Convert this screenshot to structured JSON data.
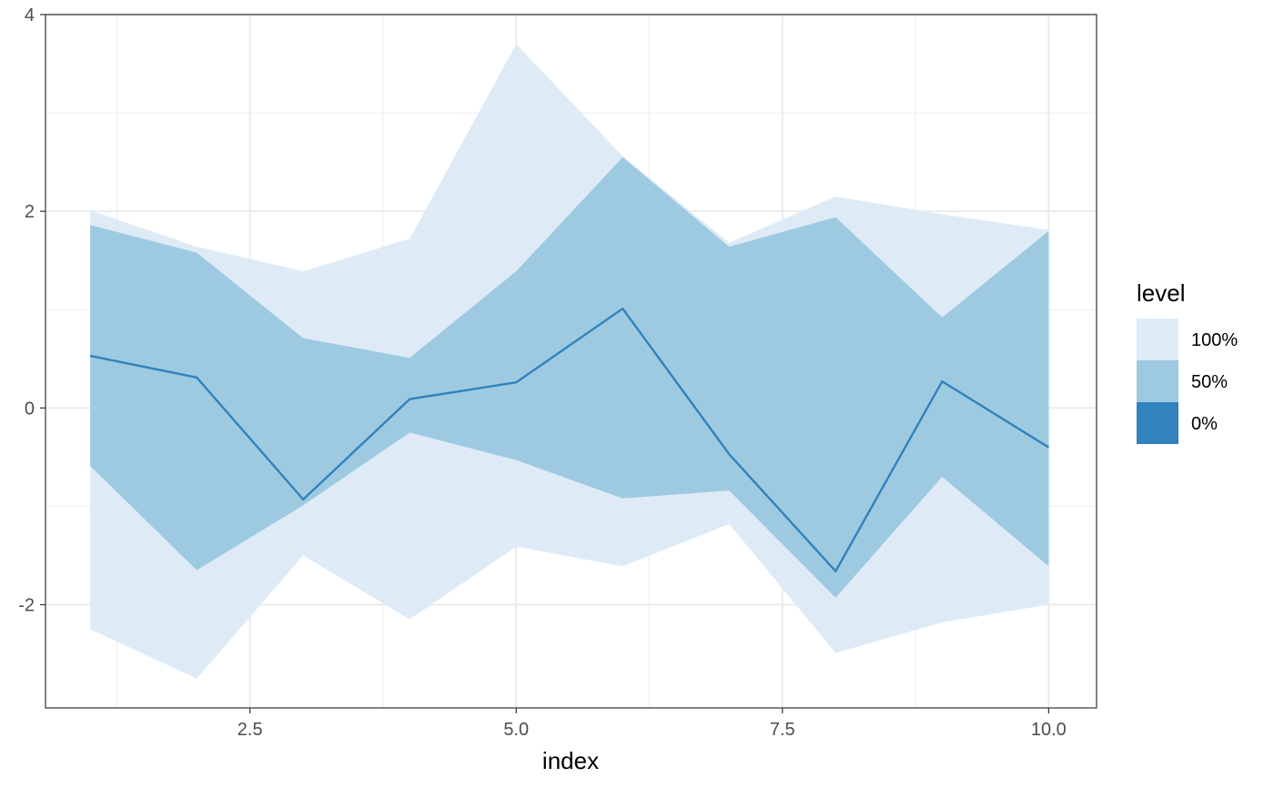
{
  "chart_data": {
    "type": "area",
    "xlabel": "index",
    "ylabel": "",
    "xlim": [
      0.58,
      10.45
    ],
    "ylim": [
      -3.05,
      4.0
    ],
    "x_ticks": [
      2.5,
      5.0,
      7.5,
      10.0
    ],
    "x_tick_labels": [
      "2.5",
      "5.0",
      "7.5",
      "10.0"
    ],
    "y_ticks": [
      -2,
      0,
      2,
      4
    ],
    "y_tick_labels": [
      "-2",
      "0",
      "2",
      "4"
    ],
    "grid": true,
    "legend_position": "right",
    "legend": {
      "title": "level",
      "items": [
        {
          "label": "100%",
          "color": "#deebf7"
        },
        {
          "label": "50%",
          "color": "#9ecae1"
        },
        {
          "label": "0%",
          "color": "#3182bd"
        }
      ]
    },
    "x": [
      1,
      2,
      3,
      4,
      5,
      6,
      7,
      8,
      9,
      10
    ],
    "bands": [
      {
        "level": "100%",
        "color": "#deebf7",
        "upper": [
          2.01,
          1.64,
          1.39,
          1.72,
          3.7,
          2.56,
          1.68,
          2.15,
          1.97,
          1.81
        ],
        "lower": [
          -2.25,
          -2.75,
          -1.5,
          -2.15,
          -1.41,
          -1.61,
          -1.18,
          -2.49,
          -2.18,
          -2.0
        ]
      },
      {
        "level": "50%",
        "color": "#9ecae1",
        "upper": [
          1.86,
          1.58,
          0.71,
          0.51,
          1.39,
          2.55,
          1.64,
          1.94,
          0.92,
          1.8
        ],
        "lower": [
          -0.59,
          -1.65,
          -0.99,
          -0.25,
          -0.53,
          -0.92,
          -0.84,
          -1.93,
          -0.7,
          -1.61
        ]
      }
    ],
    "series": [
      {
        "level": "0%",
        "color": "#3182bd",
        "values": [
          0.53,
          0.31,
          -0.93,
          0.09,
          0.26,
          1.01,
          -0.47,
          -1.66,
          0.27,
          -0.4
        ]
      }
    ]
  }
}
